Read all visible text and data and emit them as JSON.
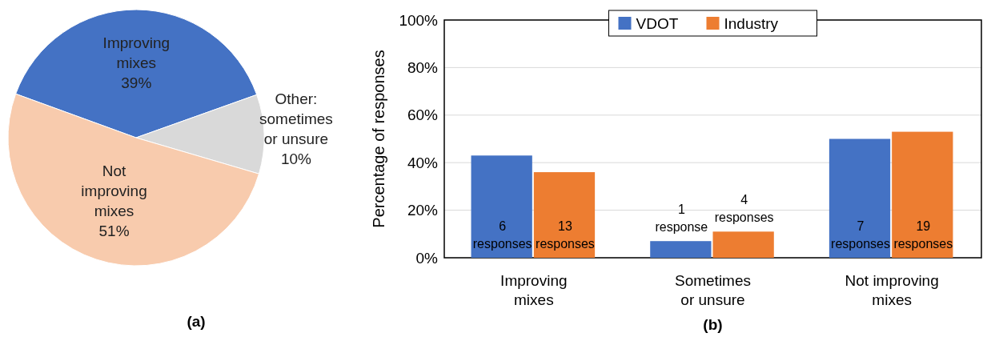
{
  "chart_data": [
    {
      "type": "pie",
      "categories": [
        "Improving mixes",
        "Other: sometimes or unsure",
        "Not improving mixes"
      ],
      "values": [
        39,
        10,
        51
      ],
      "colors": [
        "#4472c4",
        "#d9d9d9",
        "#f8cbad"
      ],
      "value_labels": [
        "39%",
        "10%",
        "51%"
      ],
      "annotations": [
        "(a)"
      ]
    },
    {
      "type": "bar",
      "categories": [
        "Improving mixes",
        "Sometimes or unsure",
        "Not improving mixes"
      ],
      "ylabel": "Percentage of responses",
      "ylim": [
        0,
        100
      ],
      "yticks": [
        {
          "value": 0,
          "label": "0%"
        },
        {
          "value": 20,
          "label": "20%"
        },
        {
          "value": 40,
          "label": "40%"
        },
        {
          "value": 60,
          "label": "60%"
        },
        {
          "value": 80,
          "label": "80%"
        },
        {
          "value": 100,
          "label": "100%"
        }
      ],
      "grid": "y",
      "legend": "top",
      "annotations": [
        "(b)",
        "6 responses",
        "13 responses",
        "1 response",
        "4 responses",
        "7 responses",
        "19 responses"
      ],
      "series": [
        {
          "name": "VDOT",
          "color": "#4472c4",
          "values": [
            43,
            7,
            50
          ]
        },
        {
          "name": "Industry",
          "color": "#ed7d31",
          "values": [
            36,
            11,
            53
          ]
        }
      ]
    }
  ]
}
